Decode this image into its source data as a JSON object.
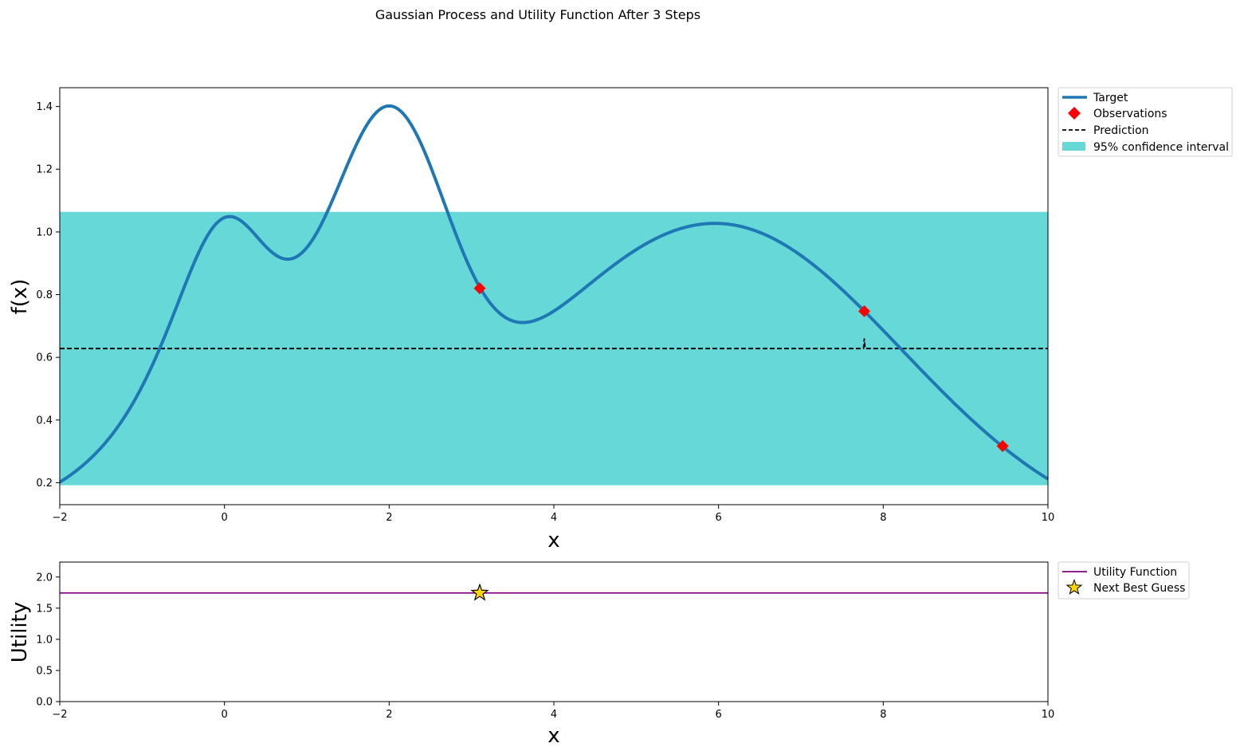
{
  "figure": {
    "title": "Gaussian Process and Utility Function After 3 Steps"
  },
  "chart_data": [
    {
      "type": "line",
      "panel": "gp",
      "xlabel": "x",
      "ylabel": "f(x)",
      "xlim": [
        -2,
        10
      ],
      "ylim": [
        0.13,
        1.46
      ],
      "xticks": [
        -2,
        0,
        2,
        4,
        6,
        8,
        10
      ],
      "yticks": [
        0.2,
        0.4,
        0.6,
        0.8,
        1.0,
        1.2,
        1.4
      ],
      "ytick_labels": [
        "0.2",
        "0.4",
        "0.6",
        "0.8",
        "1.0",
        "1.2",
        "1.4"
      ],
      "grid": false,
      "legend_position": "outside-top-right",
      "series": [
        {
          "name": "Target",
          "kind": "line",
          "color": "#1f77b4",
          "function": "exp(-(x-2)^2) + exp(-(x-6)^2/10) + 1/(x^2+1)"
        },
        {
          "name": "Observations",
          "kind": "markers",
          "marker": "diamond",
          "color": "#ff0000",
          "x": [
            3.1,
            7.77,
            9.45
          ],
          "y": [
            0.82,
            0.747,
            0.317
          ]
        },
        {
          "name": "Prediction",
          "kind": "line",
          "style": "dashed",
          "color": "#000000",
          "x": [
            -2,
            7.76,
            7.77,
            7.78,
            10
          ],
          "y": [
            0.628,
            0.628,
            0.66,
            0.628,
            0.628
          ]
        },
        {
          "name": "95% confidence interval",
          "kind": "band",
          "color": "#66d8d8",
          "x": [
            -2,
            10
          ],
          "lower": [
            0.192,
            0.192
          ],
          "upper": [
            1.064,
            1.064
          ]
        }
      ]
    },
    {
      "type": "line",
      "panel": "utility",
      "xlabel": "x",
      "ylabel": "Utility",
      "xlim": [
        -2,
        10
      ],
      "ylim": [
        0,
        2.24
      ],
      "xticks": [
        -2,
        0,
        2,
        4,
        6,
        8,
        10
      ],
      "yticks": [
        0,
        0.5,
        1.0,
        1.5,
        2.0
      ],
      "ytick_labels": [
        "0.0",
        "0.5",
        "1.0",
        "1.5",
        "2.0"
      ],
      "grid": false,
      "legend_position": "outside-top-right",
      "series": [
        {
          "name": "Utility Function",
          "kind": "line",
          "color": "#800080",
          "x": [
            -2,
            10
          ],
          "y": [
            1.744,
            1.744
          ]
        },
        {
          "name": "Next Best Guess",
          "kind": "marker",
          "marker": "star",
          "color": "#ffd700",
          "x": [
            3.1
          ],
          "y": [
            1.744
          ]
        }
      ]
    }
  ]
}
